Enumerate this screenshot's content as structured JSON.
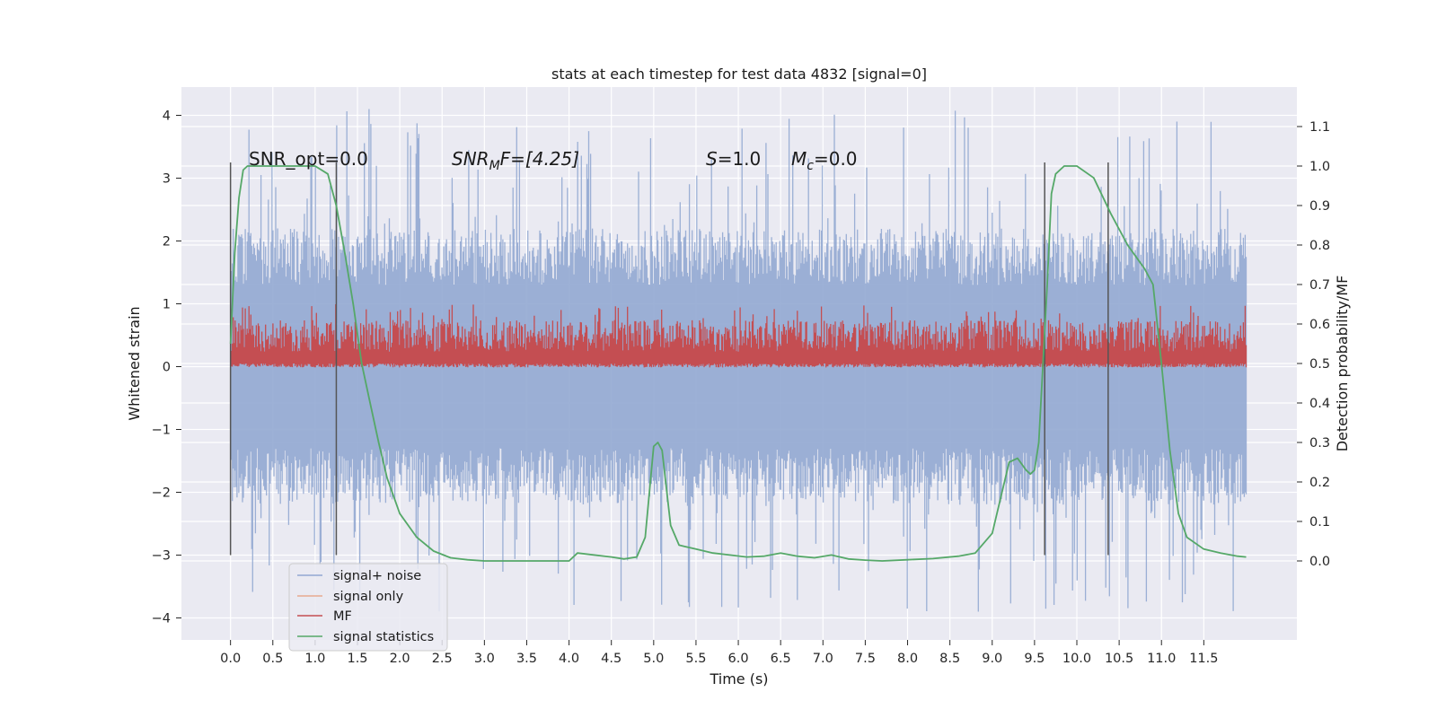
{
  "chart_data": {
    "type": "line",
    "title": "stats at each timestep for test data 4832 [signal=0]",
    "xlabel": "Time (s)",
    "ylabel_left": "Whitened strain",
    "ylabel_right": "Detection probability/MF",
    "xlim": [
      -0.58,
      12.6
    ],
    "ylim_left": [
      -4.35,
      4.45
    ],
    "ylim_right": [
      -0.2,
      1.2
    ],
    "x_ticks": [
      "0.0",
      "0.5",
      "1.0",
      "1.5",
      "2.0",
      "2.5",
      "3.0",
      "3.5",
      "4.0",
      "4.5",
      "5.0",
      "5.5",
      "6.0",
      "6.5",
      "7.0",
      "7.5",
      "8.0",
      "8.5",
      "9.0",
      "9.5",
      "10.0",
      "10.5",
      "11.0",
      "11.5"
    ],
    "y_ticks_left": [
      "4",
      "3",
      "2",
      "1",
      "0",
      "−1",
      "−2",
      "−3",
      "−4"
    ],
    "y_ticks_right": [
      "1.1",
      "1.0",
      "0.9",
      "0.8",
      "0.7",
      "0.6",
      "0.5",
      "0.4",
      "0.3",
      "0.2",
      "0.1",
      "0.0"
    ],
    "grid": true,
    "legend_position": "lower-left",
    "annotations": {
      "snr_opt": "SNR_opt=0.0",
      "snr_mf_base": "SNR",
      "snr_mf_sub": "M",
      "snr_mf_rest": "F=[4.25]",
      "s_var": "S",
      "s_val": "=1.0",
      "mc_var": "M",
      "mc_sub": "c",
      "mc_val": "=0.0"
    },
    "vertical_markers": [
      0.0,
      1.25,
      9.62,
      10.37
    ],
    "series": [
      {
        "name": "signal+ noise",
        "color": "#92a8d1",
        "axis": "left",
        "x_range": [
          0.0,
          12.0
        ],
        "band": [
          -1.3,
          1.3
        ],
        "spike_range": [
          -3.9,
          4.1
        ]
      },
      {
        "name": "signal only",
        "color": "#e8a990",
        "axis": "left",
        "values_note": ""
      },
      {
        "name": "MF",
        "color": "#c44e52",
        "axis": "right",
        "x_range": [
          0.0,
          12.0
        ],
        "band": [
          0.5,
          0.6
        ],
        "spike_range": [
          0.49,
          0.65
        ]
      },
      {
        "name": "signal statistics",
        "color": "#55a868",
        "axis": "right",
        "x": [
          0.0,
          0.05,
          0.1,
          0.15,
          0.2,
          0.3,
          0.5,
          0.75,
          1.0,
          1.15,
          1.25,
          1.35,
          1.45,
          1.55,
          1.65,
          1.75,
          1.85,
          2.0,
          2.2,
          2.4,
          2.6,
          2.8,
          3.0,
          3.5,
          4.0,
          4.1,
          4.5,
          4.65,
          4.8,
          4.9,
          5.0,
          5.05,
          5.1,
          5.2,
          5.3,
          5.5,
          5.7,
          5.9,
          6.1,
          6.3,
          6.5,
          6.7,
          6.9,
          7.1,
          7.3,
          7.5,
          7.7,
          8.0,
          8.3,
          8.6,
          8.8,
          9.0,
          9.1,
          9.2,
          9.3,
          9.4,
          9.45,
          9.5,
          9.55,
          9.6,
          9.65,
          9.7,
          9.75,
          9.85,
          10.0,
          10.2,
          10.4,
          10.6,
          10.8,
          10.9,
          11.0,
          11.1,
          11.2,
          11.3,
          11.5,
          11.7,
          11.9,
          12.0
        ],
        "values": [
          0.55,
          0.78,
          0.92,
          0.99,
          1.0,
          1.0,
          1.0,
          1.0,
          1.0,
          0.98,
          0.9,
          0.78,
          0.65,
          0.5,
          0.4,
          0.3,
          0.21,
          0.12,
          0.06,
          0.025,
          0.008,
          0.003,
          0.0,
          0.0,
          0.0,
          0.02,
          0.01,
          0.005,
          0.01,
          0.06,
          0.29,
          0.3,
          0.28,
          0.09,
          0.04,
          0.03,
          0.02,
          0.015,
          0.01,
          0.012,
          0.02,
          0.012,
          0.008,
          0.015,
          0.005,
          0.002,
          0.0,
          0.003,
          0.006,
          0.012,
          0.02,
          0.07,
          0.16,
          0.25,
          0.26,
          0.23,
          0.22,
          0.23,
          0.3,
          0.5,
          0.7,
          0.93,
          0.98,
          1.0,
          1.0,
          0.97,
          0.88,
          0.8,
          0.74,
          0.7,
          0.5,
          0.28,
          0.12,
          0.06,
          0.03,
          0.02,
          0.012,
          0.01
        ]
      }
    ]
  }
}
